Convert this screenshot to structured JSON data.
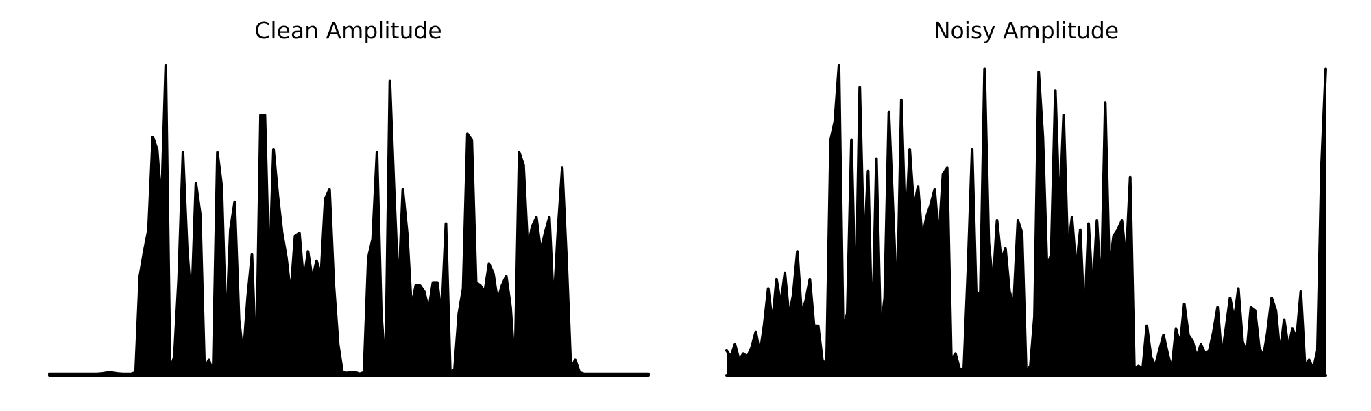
{
  "charts": [
    {
      "title": "Clean Amplitude"
    },
    {
      "title": "Noisy Amplitude"
    }
  ],
  "chart_data": [
    {
      "type": "area",
      "title": "Clean Amplitude",
      "xlabel": "",
      "ylabel": "",
      "axes_visible": false,
      "grid": false,
      "color": "#000000",
      "ylim": [
        0,
        1
      ],
      "values": [
        0.005,
        0.005,
        0.005,
        0.005,
        0.005,
        0.005,
        0.005,
        0.005,
        0.005,
        0.005,
        0.005,
        0.005,
        0.006,
        0.008,
        0.01,
        0.008,
        0.006,
        0.005,
        0.005,
        0.005,
        0.01,
        0.32,
        0.4,
        0.47,
        0.77,
        0.73,
        0.55,
        1.0,
        0.02,
        0.06,
        0.31,
        0.72,
        0.4,
        0.23,
        0.62,
        0.52,
        0.02,
        0.05,
        0.01,
        0.72,
        0.61,
        0.14,
        0.47,
        0.56,
        0.18,
        0.06,
        0.25,
        0.39,
        0.02,
        0.84,
        0.84,
        0.32,
        0.73,
        0.58,
        0.46,
        0.38,
        0.26,
        0.45,
        0.46,
        0.3,
        0.4,
        0.31,
        0.37,
        0.32,
        0.57,
        0.6,
        0.29,
        0.1,
        0.01,
        0.008,
        0.01,
        0.01,
        0.005,
        0.01,
        0.38,
        0.44,
        0.72,
        0.2,
        0.01,
        0.95,
        0.59,
        0.27,
        0.6,
        0.46,
        0.22,
        0.29,
        0.29,
        0.27,
        0.21,
        0.3,
        0.3,
        0.19,
        0.49,
        0.01,
        0.02,
        0.2,
        0.28,
        0.78,
        0.76,
        0.3,
        0.29,
        0.27,
        0.36,
        0.33,
        0.24,
        0.29,
        0.32,
        0.22,
        0.02,
        0.72,
        0.68,
        0.41,
        0.48,
        0.51,
        0.4,
        0.46,
        0.51,
        0.22,
        0.47,
        0.67,
        0.37,
        0.02,
        0.05,
        0.01,
        0.005,
        0.005,
        0.005,
        0.005,
        0.005,
        0.005,
        0.005,
        0.005,
        0.005,
        0.005,
        0.005,
        0.005,
        0.005,
        0.005,
        0.005,
        0.005
      ]
    },
    {
      "type": "area",
      "title": "Noisy Amplitude",
      "xlabel": "",
      "ylabel": "",
      "axes_visible": false,
      "grid": false,
      "color": "#000000",
      "ylim": [
        0,
        1
      ],
      "values": [
        0.08,
        0.06,
        0.1,
        0.05,
        0.07,
        0.06,
        0.09,
        0.14,
        0.07,
        0.16,
        0.28,
        0.17,
        0.31,
        0.23,
        0.33,
        0.19,
        0.26,
        0.4,
        0.2,
        0.24,
        0.31,
        0.16,
        0.16,
        0.05,
        0.03,
        0.76,
        0.82,
        1.0,
        0.15,
        0.2,
        0.76,
        0.21,
        0.93,
        0.4,
        0.66,
        0.11,
        0.7,
        0.14,
        0.25,
        0.85,
        0.53,
        0.22,
        0.89,
        0.45,
        0.73,
        0.54,
        0.61,
        0.44,
        0.51,
        0.55,
        0.6,
        0.44,
        0.65,
        0.67,
        0.05,
        0.07,
        0.02,
        0.02,
        0.34,
        0.73,
        0.25,
        0.27,
        0.99,
        0.43,
        0.29,
        0.5,
        0.37,
        0.41,
        0.27,
        0.23,
        0.5,
        0.46,
        0.01,
        0.03,
        0.19,
        0.98,
        0.77,
        0.35,
        0.39,
        0.92,
        0.52,
        0.84,
        0.4,
        0.51,
        0.34,
        0.47,
        0.17,
        0.49,
        0.26,
        0.5,
        0.26,
        0.88,
        0.34,
        0.45,
        0.47,
        0.5,
        0.37,
        0.64,
        0.02,
        0.03,
        0.02,
        0.16,
        0.06,
        0.03,
        0.08,
        0.13,
        0.07,
        0.02,
        0.15,
        0.1,
        0.23,
        0.13,
        0.11,
        0.06,
        0.1,
        0.07,
        0.08,
        0.14,
        0.22,
        0.06,
        0.15,
        0.25,
        0.18,
        0.28,
        0.11,
        0.07,
        0.22,
        0.21,
        0.09,
        0.06,
        0.14,
        0.25,
        0.21,
        0.07,
        0.18,
        0.09,
        0.15,
        0.12,
        0.27,
        0.03,
        0.05,
        0.02,
        0.08,
        0.68,
        0.99
      ]
    }
  ]
}
